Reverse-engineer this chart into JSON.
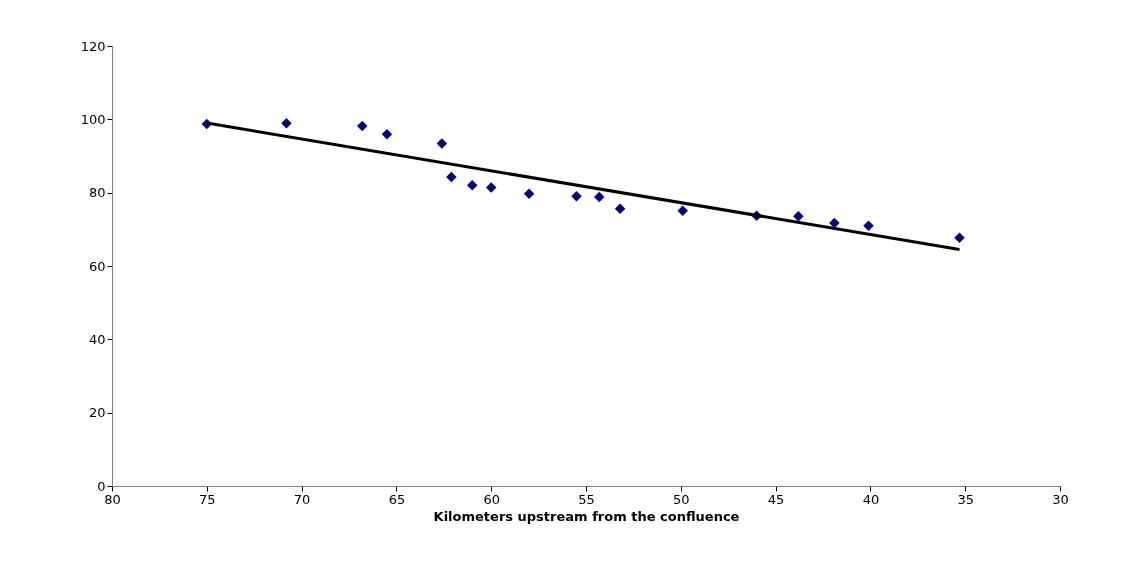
{
  "chart_data": {
    "type": "scatter",
    "xlabel": "Kilometers upstream from the confluence",
    "xlim": [
      80,
      30
    ],
    "xticks": [
      80,
      75,
      70,
      65,
      60,
      55,
      50,
      45,
      40,
      35,
      30
    ],
    "ylim": [
      0,
      120
    ],
    "yticks": [
      0,
      20,
      40,
      60,
      80,
      100,
      120
    ],
    "grid": false,
    "marker": "diamond",
    "series": [
      {
        "color": "#000080",
        "x": [
          75.0,
          70.8,
          66.8,
          65.5,
          62.6,
          62.1,
          61.0,
          60.0,
          58.0,
          55.5,
          54.3,
          53.2,
          49.9,
          46.0,
          43.8,
          41.9,
          40.1,
          35.3
        ],
        "values": [
          98.7,
          98.9,
          98.2,
          95.9,
          93.4,
          84.3,
          82.0,
          81.4,
          79.7,
          79.0,
          78.8,
          75.6,
          75.1,
          73.7,
          73.6,
          71.7,
          71.0,
          67.7
        ]
      },
      {
        "type": "line",
        "color": "#000000",
        "line_style": "solid",
        "marker": "none",
        "x": [
          75.0,
          35.3
        ],
        "values": [
          99.0,
          64.5
        ]
      }
    ]
  }
}
